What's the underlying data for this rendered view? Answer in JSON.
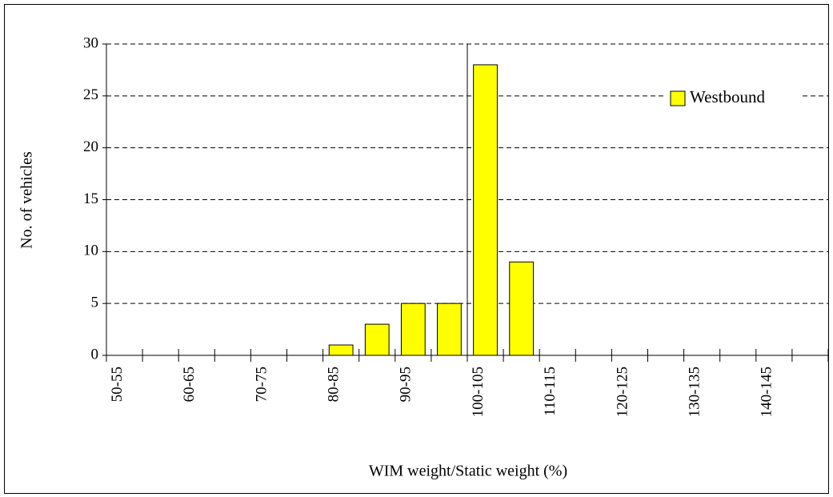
{
  "chart_data": {
    "type": "bar",
    "xlabel": "WIM weight/Static weight (%)",
    "ylabel": "No. of vehicles",
    "categories": [
      "50-55",
      null,
      "60-65",
      null,
      "70-75",
      null,
      "80-85",
      null,
      "90-95",
      null,
      "100-105",
      null,
      "110-115",
      null,
      "120-125",
      null,
      "130-135",
      null,
      "140-145",
      null
    ],
    "series": [
      {
        "name": "Westbound",
        "color": "#ffff00",
        "values": [
          0,
          0,
          0,
          0,
          0,
          0,
          1,
          3,
          5,
          5,
          28,
          9,
          0,
          0,
          0,
          0,
          0,
          0,
          0,
          0
        ]
      }
    ],
    "ylim": [
      0,
      30
    ],
    "yticks": [
      0,
      5,
      10,
      15,
      20,
      25,
      30
    ],
    "grid": true,
    "legend": "upper right"
  }
}
